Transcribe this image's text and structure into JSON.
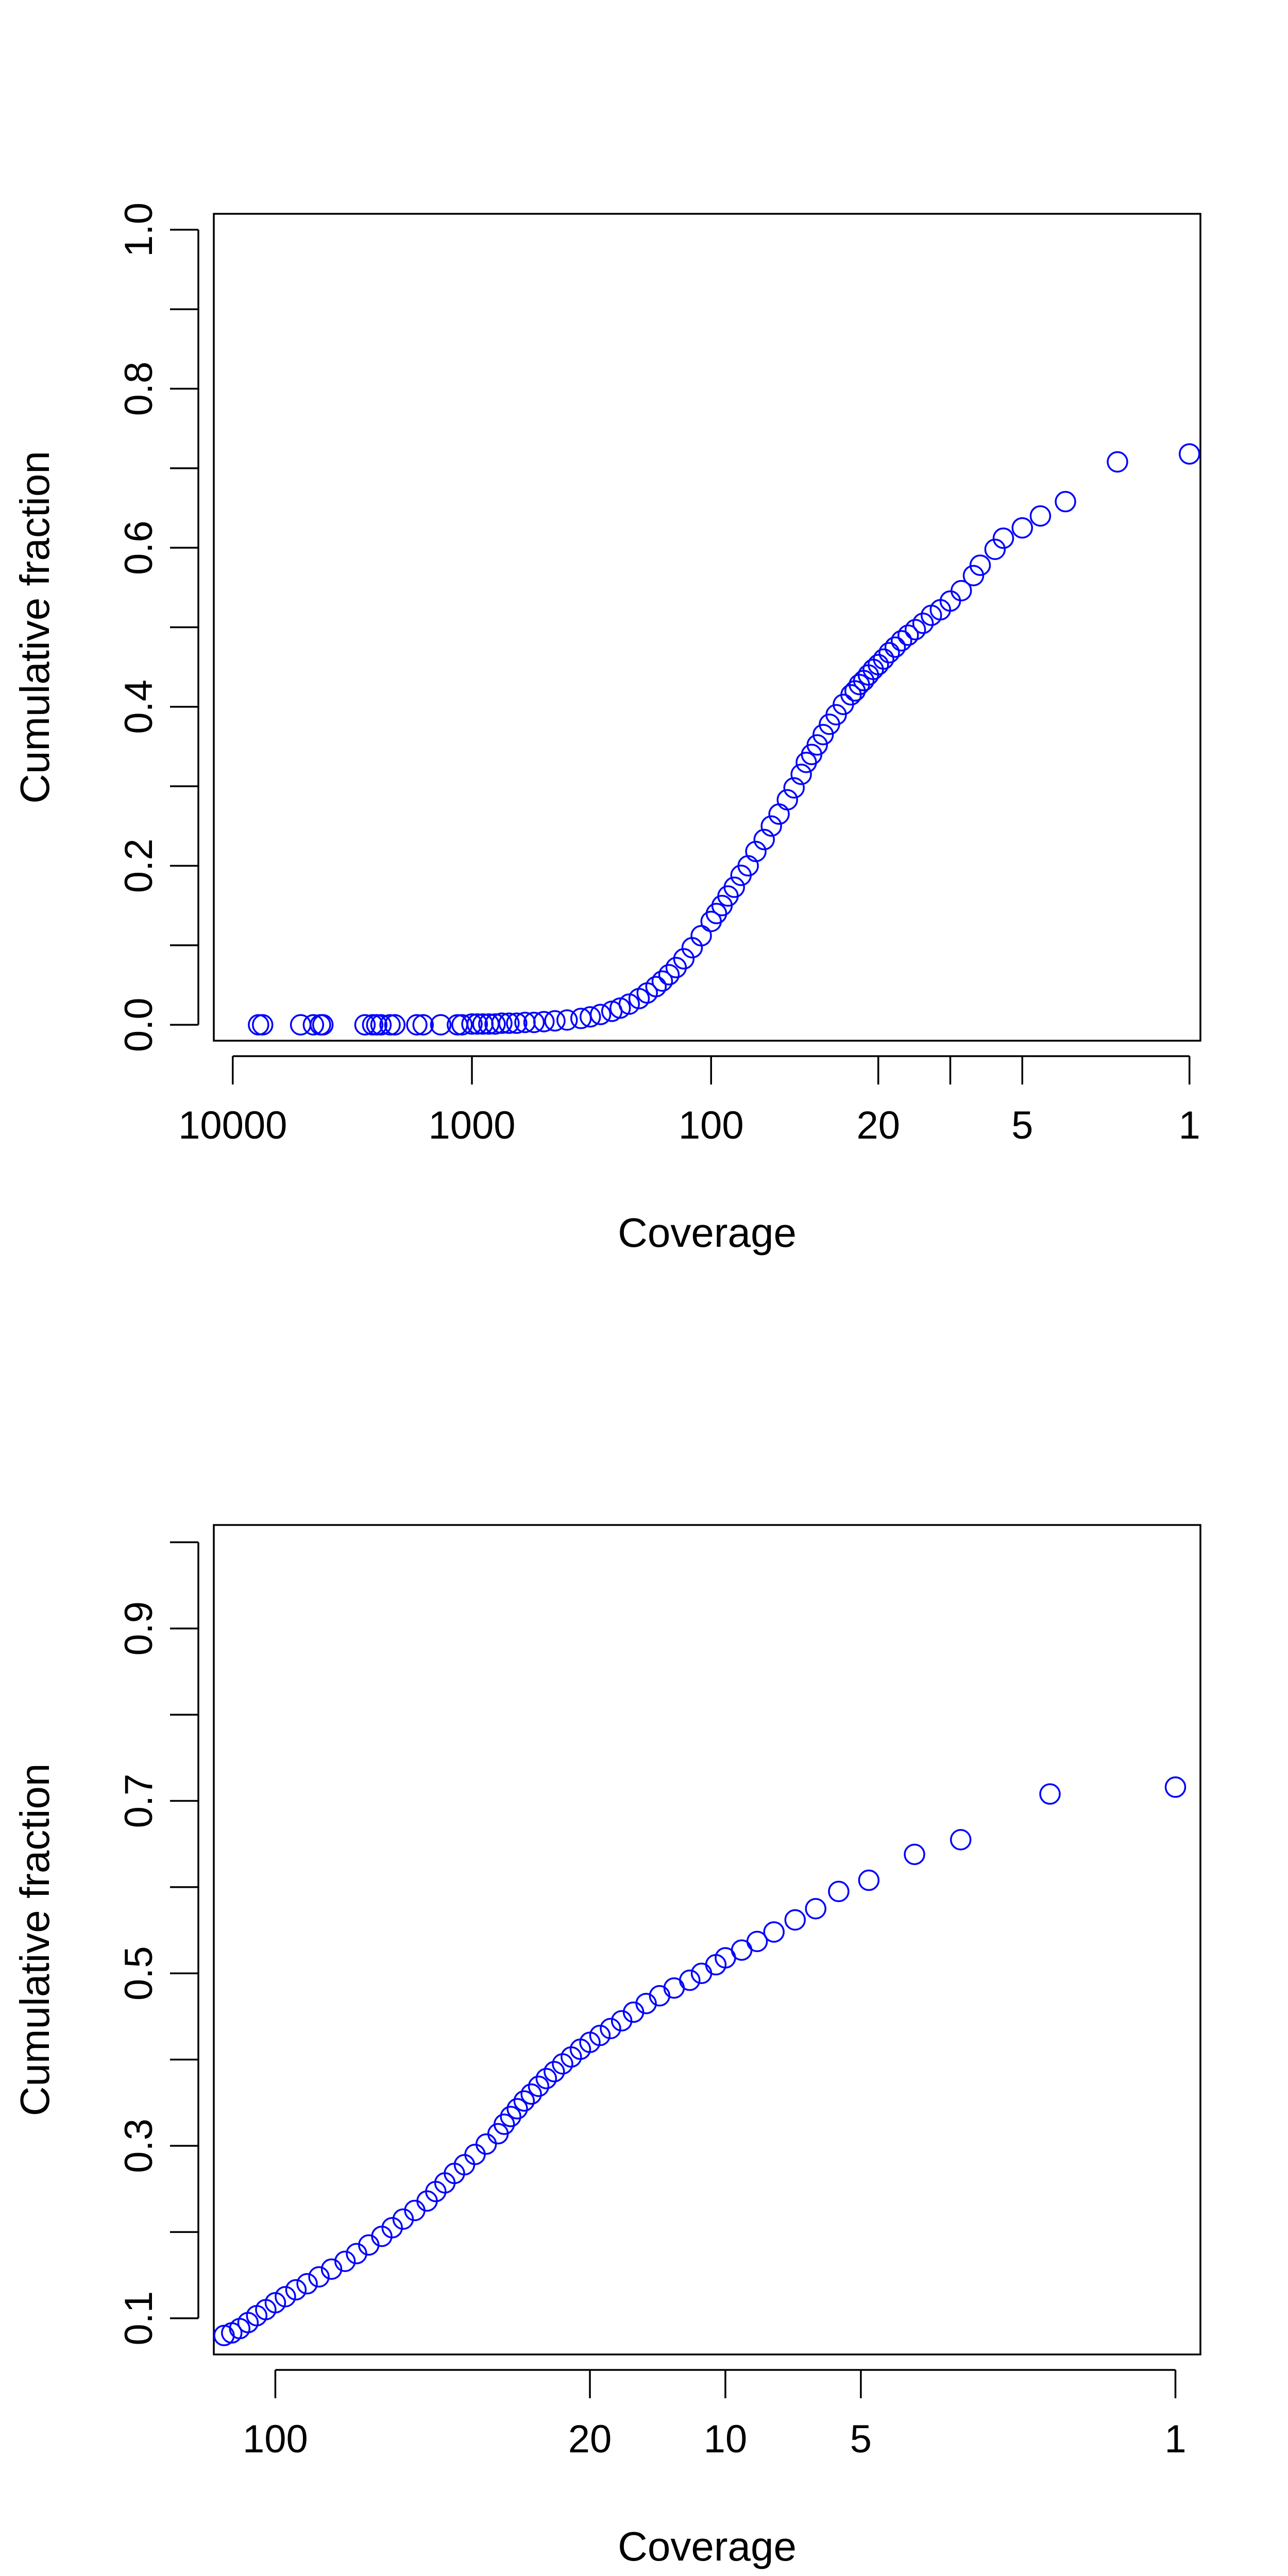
{
  "chart_data": [
    {
      "type": "scatter",
      "title": "",
      "xlabel": "Coverage",
      "ylabel": "Cumulative fraction",
      "xscale": "log",
      "x_direction": "reversed",
      "xlim": [
        12000,
        0.9
      ],
      "ylim": [
        -0.02,
        1.02
      ],
      "grid": false,
      "legend": "none",
      "marker": "open-circle",
      "color": "#0000ff",
      "xticks": [
        10000,
        1000,
        100,
        20,
        10,
        5,
        1
      ],
      "xtick_labels": [
        "10000",
        "1000",
        "100",
        "20",
        "",
        "5",
        "1"
      ],
      "yticks": [
        0,
        0.2,
        0.4,
        0.6,
        0.8,
        1.0
      ],
      "ytick_labels": [
        "0.0",
        "0.2",
        "0.4",
        "0.6",
        "0.8",
        "1.0"
      ],
      "yminor_ticks": [
        0.1,
        0.3,
        0.5,
        0.7,
        0.9
      ],
      "points": [
        [
          7800,
          0
        ],
        [
          7500,
          0
        ],
        [
          5200,
          0
        ],
        [
          4600,
          0
        ],
        [
          4300,
          0
        ],
        [
          4200,
          0
        ],
        [
          2800,
          0
        ],
        [
          2600,
          0
        ],
        [
          2500,
          0
        ],
        [
          2400,
          0
        ],
        [
          2200,
          0
        ],
        [
          2100,
          0
        ],
        [
          1700,
          0
        ],
        [
          1600,
          0
        ],
        [
          1350,
          0
        ],
        [
          1150,
          0
        ],
        [
          1100,
          0
        ],
        [
          1000,
          0.001
        ],
        [
          950,
          0.001
        ],
        [
          900,
          0.001
        ],
        [
          850,
          0.001
        ],
        [
          800,
          0.001
        ],
        [
          750,
          0.002
        ],
        [
          700,
          0.002
        ],
        [
          650,
          0.002
        ],
        [
          600,
          0.003
        ],
        [
          550,
          0.003
        ],
        [
          500,
          0.004
        ],
        [
          450,
          0.005
        ],
        [
          400,
          0.006
        ],
        [
          350,
          0.008
        ],
        [
          320,
          0.01
        ],
        [
          290,
          0.013
        ],
        [
          260,
          0.017
        ],
        [
          240,
          0.021
        ],
        [
          220,
          0.026
        ],
        [
          200,
          0.033
        ],
        [
          185,
          0.04
        ],
        [
          170,
          0.048
        ],
        [
          160,
          0.055
        ],
        [
          150,
          0.063
        ],
        [
          140,
          0.072
        ],
        [
          130,
          0.083
        ],
        [
          120,
          0.097
        ],
        [
          110,
          0.112
        ],
        [
          100,
          0.13
        ],
        [
          95,
          0.14
        ],
        [
          90,
          0.15
        ],
        [
          85,
          0.162
        ],
        [
          80,
          0.173
        ],
        [
          75,
          0.188
        ],
        [
          70,
          0.2
        ],
        [
          65,
          0.218
        ],
        [
          60,
          0.233
        ],
        [
          56,
          0.25
        ],
        [
          52,
          0.265
        ],
        [
          48,
          0.283
        ],
        [
          45,
          0.298
        ],
        [
          42,
          0.315
        ],
        [
          40,
          0.33
        ],
        [
          38,
          0.34
        ],
        [
          36,
          0.352
        ],
        [
          34,
          0.365
        ],
        [
          32,
          0.378
        ],
        [
          30,
          0.39
        ],
        [
          28,
          0.403
        ],
        [
          26,
          0.415
        ],
        [
          25,
          0.42
        ],
        [
          24,
          0.428
        ],
        [
          23,
          0.433
        ],
        [
          22,
          0.44
        ],
        [
          21,
          0.447
        ],
        [
          20,
          0.453
        ],
        [
          19,
          0.46
        ],
        [
          18,
          0.468
        ],
        [
          17,
          0.475
        ],
        [
          16,
          0.483
        ],
        [
          15,
          0.49
        ],
        [
          14,
          0.497
        ],
        [
          13,
          0.505
        ],
        [
          12,
          0.515
        ],
        [
          11,
          0.522
        ],
        [
          10,
          0.533
        ],
        [
          9,
          0.546
        ],
        [
          8,
          0.565
        ],
        [
          7.5,
          0.578
        ],
        [
          6.5,
          0.598
        ],
        [
          6,
          0.612
        ],
        [
          5,
          0.625
        ],
        [
          4.2,
          0.64
        ],
        [
          3.3,
          0.658
        ],
        [
          2,
          0.708
        ],
        [
          1,
          0.718
        ]
      ]
    },
    {
      "type": "scatter",
      "title": "",
      "xlabel": "Coverage",
      "ylabel": "Cumulative fraction",
      "xscale": "log",
      "x_direction": "reversed",
      "xlim": [
        137,
        0.88
      ],
      "ylim": [
        0.058,
        1.02
      ],
      "grid": false,
      "legend": "none",
      "marker": "open-circle",
      "color": "#0000ff",
      "xticks": [
        100,
        20,
        10,
        5,
        1
      ],
      "xtick_labels": [
        "100",
        "20",
        "10",
        "5",
        "1"
      ],
      "yticks": [
        0.1,
        0.3,
        0.5,
        0.7,
        0.9
      ],
      "ytick_labels": [
        "0.1",
        "0.3",
        "0.5",
        "0.7",
        "0.9"
      ],
      "yminor_ticks": [
        0.2,
        0.4,
        0.6,
        0.8,
        1.0
      ],
      "points": [
        [
          130,
          0.08
        ],
        [
          125,
          0.083
        ],
        [
          120,
          0.088
        ],
        [
          115,
          0.095
        ],
        [
          110,
          0.103
        ],
        [
          105,
          0.11
        ],
        [
          100,
          0.118
        ],
        [
          95,
          0.125
        ],
        [
          90,
          0.133
        ],
        [
          85,
          0.14
        ],
        [
          80,
          0.148
        ],
        [
          75,
          0.157
        ],
        [
          70,
          0.166
        ],
        [
          66,
          0.175
        ],
        [
          62,
          0.185
        ],
        [
          58,
          0.195
        ],
        [
          55,
          0.205
        ],
        [
          52,
          0.215
        ],
        [
          49,
          0.225
        ],
        [
          46,
          0.236
        ],
        [
          44,
          0.247
        ],
        [
          42,
          0.257
        ],
        [
          40,
          0.268
        ],
        [
          38,
          0.278
        ],
        [
          36,
          0.29
        ],
        [
          34,
          0.302
        ],
        [
          32,
          0.314
        ],
        [
          31,
          0.325
        ],
        [
          30,
          0.334
        ],
        [
          29,
          0.343
        ],
        [
          28,
          0.352
        ],
        [
          27,
          0.36
        ],
        [
          26,
          0.369
        ],
        [
          25,
          0.378
        ],
        [
          24,
          0.386
        ],
        [
          23,
          0.395
        ],
        [
          22,
          0.403
        ],
        [
          21,
          0.412
        ],
        [
          20,
          0.42
        ],
        [
          19,
          0.428
        ],
        [
          18,
          0.436
        ],
        [
          17,
          0.445
        ],
        [
          16,
          0.455
        ],
        [
          15,
          0.465
        ],
        [
          14,
          0.474
        ],
        [
          13,
          0.483
        ],
        [
          12,
          0.492
        ],
        [
          11.3,
          0.5
        ],
        [
          10.5,
          0.51
        ],
        [
          10,
          0.518
        ],
        [
          9.2,
          0.527
        ],
        [
          8.5,
          0.537
        ],
        [
          7.8,
          0.548
        ],
        [
          7,
          0.562
        ],
        [
          6.3,
          0.575
        ],
        [
          5.6,
          0.595
        ],
        [
          4.8,
          0.608
        ],
        [
          3.8,
          0.638
        ],
        [
          3,
          0.655
        ],
        [
          1.9,
          0.708
        ],
        [
          1,
          0.716
        ]
      ]
    }
  ]
}
